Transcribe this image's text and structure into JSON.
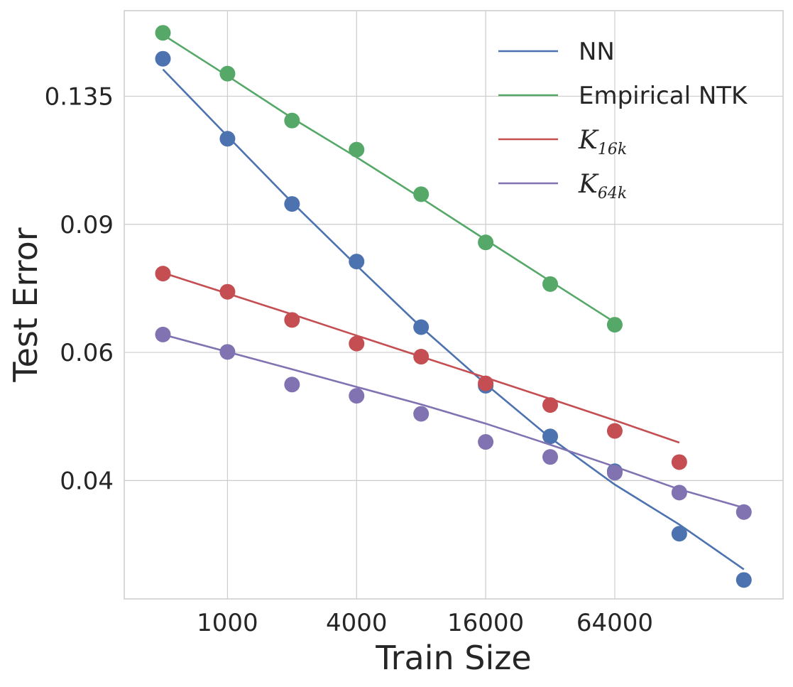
{
  "chart_data": {
    "type": "line",
    "title": "",
    "xlabel": "Train Size",
    "ylabel": "Test Error",
    "x_scale": "log2",
    "y_scale": "log",
    "x": [
      500,
      1000,
      2000,
      4000,
      8000,
      16000,
      32000,
      64000,
      128000,
      256000
    ],
    "xticks": [
      1000,
      4000,
      16000,
      64000
    ],
    "xtick_labels": [
      "1000",
      "4000",
      "16000",
      "64000"
    ],
    "yticks": [
      0.04,
      0.06,
      0.09,
      0.135
    ],
    "ytick_labels": [
      "0.04",
      "0.06",
      "0.09",
      "0.135"
    ],
    "xlim": [
      330,
      390000
    ],
    "ylim": [
      0.0275,
      0.177
    ],
    "grid": true,
    "legend_position": "top-right",
    "series": [
      {
        "name": "NN",
        "color": "#4c72b0",
        "points": [
          0.152,
          0.118,
          0.096,
          0.08,
          0.065,
          0.054,
          0.046,
          0.0412,
          0.0338,
          0.0292
        ],
        "fit": [
          0.147,
          0.119,
          0.0965,
          0.079,
          0.065,
          0.0543,
          0.0458,
          0.0395,
          0.0348,
          0.0302
        ]
      },
      {
        "name": "Empirical NTK",
        "color": "#55a868",
        "points": [
          0.165,
          0.145,
          0.125,
          0.114,
          0.099,
          0.085,
          0.0745,
          0.0655
        ],
        "fit": [
          0.164,
          0.144,
          0.126,
          0.1113,
          0.0978,
          0.0857,
          0.0752,
          0.066
        ]
      },
      {
        "name": "K_16k",
        "color": "#c44e52",
        "points": [
          0.077,
          0.0727,
          0.0665,
          0.0617,
          0.0592,
          0.0544,
          0.0508,
          0.0468,
          0.0424
        ],
        "fit": [
          0.0772,
          0.0723,
          0.0677,
          0.0633,
          0.0592,
          0.0554,
          0.0518,
          0.0484,
          0.0451
        ]
      },
      {
        "name": "K_64k",
        "color": "#8172b2",
        "points": [
          0.0635,
          0.0601,
          0.0542,
          0.0523,
          0.0494,
          0.0452,
          0.0431,
          0.041,
          0.0385,
          0.0362
        ],
        "fit": [
          0.0635,
          0.0601,
          0.0569,
          0.0538,
          0.0509,
          0.0479,
          0.0448,
          0.0418,
          0.0389,
          0.0367
        ]
      }
    ],
    "legend": {
      "items": [
        {
          "label": "NN",
          "math": false
        },
        {
          "label": "Empirical NTK",
          "math": false
        },
        {
          "label": "K",
          "sub": "16k",
          "math": true
        },
        {
          "label": "K",
          "sub": "64k",
          "math": true
        }
      ]
    }
  }
}
